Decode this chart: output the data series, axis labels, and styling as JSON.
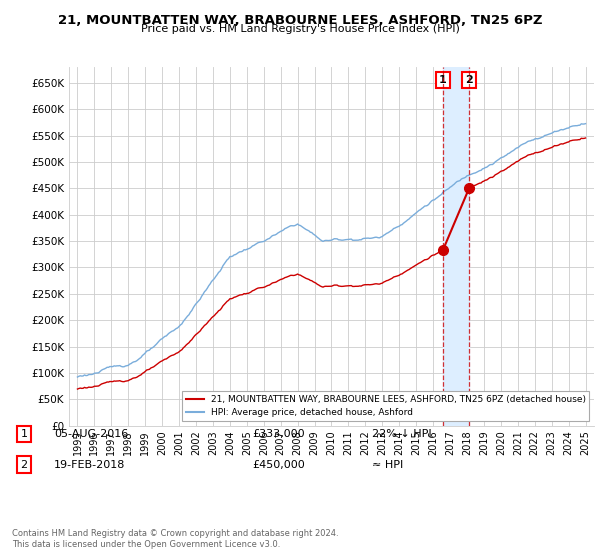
{
  "title": "21, MOUNTBATTEN WAY, BRABOURNE LEES, ASHFORD, TN25 6PZ",
  "subtitle": "Price paid vs. HM Land Registry's House Price Index (HPI)",
  "ylabel_ticks": [
    "£0",
    "£50K",
    "£100K",
    "£150K",
    "£200K",
    "£250K",
    "£300K",
    "£350K",
    "£400K",
    "£450K",
    "£500K",
    "£550K",
    "£600K",
    "£650K"
  ],
  "ytick_values": [
    0,
    50000,
    100000,
    150000,
    200000,
    250000,
    300000,
    350000,
    400000,
    450000,
    500000,
    550000,
    600000,
    650000
  ],
  "ylim": [
    0,
    680000
  ],
  "xlim_years": [
    1994.5,
    2025.5
  ],
  "hpi_color": "#7aaddb",
  "price_color": "#cc0000",
  "marker1_date_x": 2016.58,
  "marker2_date_x": 2018.12,
  "marker1_price": 333000,
  "marker2_price": 450000,
  "legend_line1": "21, MOUNTBATTEN WAY, BRABOURNE LEES, ASHFORD, TN25 6PZ (detached house)",
  "legend_line2": "HPI: Average price, detached house, Ashford",
  "table_row1": [
    "1",
    "05-AUG-2016",
    "£333,000",
    "22% ↓ HPI"
  ],
  "table_row2": [
    "2",
    "19-FEB-2018",
    "£450,000",
    "≈ HPI"
  ],
  "footer": "Contains HM Land Registry data © Crown copyright and database right 2024.\nThis data is licensed under the Open Government Licence v3.0.",
  "background_color": "#ffffff",
  "grid_color": "#cccccc",
  "shade_color": "#ddeeff"
}
